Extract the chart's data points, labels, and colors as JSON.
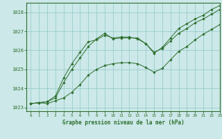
{
  "title": "Graphe pression niveau de la mer (hPa)",
  "xlim": [
    -0.5,
    23
  ],
  "ylim": [
    1022.8,
    1028.5
  ],
  "yticks": [
    1023,
    1024,
    1025,
    1026,
    1027,
    1028
  ],
  "xticks": [
    0,
    1,
    2,
    3,
    4,
    5,
    6,
    7,
    8,
    9,
    10,
    11,
    12,
    13,
    14,
    15,
    16,
    17,
    18,
    19,
    20,
    21,
    22,
    23
  ],
  "bg_color": "#cce8e8",
  "grid_color": "#99cccc",
  "line_color": "#2d6e2d",
  "marker_color": "#2d6e2d",
  "series": [
    [
      1023.2,
      1023.25,
      1023.2,
      1023.35,
      1023.5,
      1023.8,
      1024.2,
      1024.7,
      1025.0,
      1025.2,
      1025.3,
      1025.35,
      1025.35,
      1025.3,
      1025.1,
      1024.85,
      1025.05,
      1025.5,
      1025.95,
      1026.2,
      1026.55,
      1026.85,
      1027.1,
      1027.35
    ],
    [
      1023.2,
      1023.25,
      1023.3,
      1023.5,
      1024.3,
      1025.0,
      1025.6,
      1026.2,
      1026.6,
      1026.9,
      1026.6,
      1026.65,
      1026.65,
      1026.65,
      1026.35,
      1025.9,
      1026.1,
      1026.5,
      1026.9,
      1027.15,
      1027.45,
      1027.65,
      1027.9,
      1028.15
    ],
    [
      1023.2,
      1023.25,
      1023.3,
      1023.6,
      1024.55,
      1025.3,
      1025.9,
      1026.45,
      1026.55,
      1026.8,
      1026.65,
      1026.7,
      1026.7,
      1026.6,
      1026.35,
      1025.85,
      1026.15,
      1026.65,
      1027.15,
      1027.4,
      1027.65,
      1027.85,
      1028.15,
      1028.35
    ]
  ]
}
